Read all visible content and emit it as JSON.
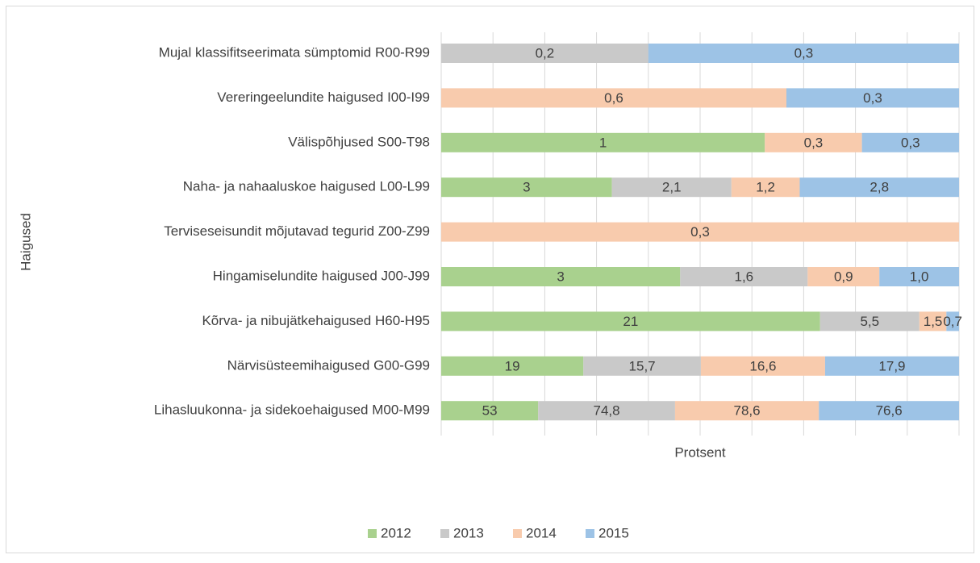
{
  "chart_data": {
    "type": "bar_stacked_100_horizontal",
    "x_label": "Protsent",
    "y_label": "Haigused",
    "categories": [
      "Mujal klassifitseerimata sümptomid R00-R99",
      "Vereringeelundite haigused I00-I99",
      "Välispõhjused S00-T98",
      "Naha- ja nahaaluskoe haigused L00-L99",
      "Terviseseisundit mõjutavad tegurid Z00-Z99",
      "Hingamiselundite haigused J00-J99",
      "Kõrva- ja nibujätkehaigused H60-H95",
      "Närvisüsteemihaigused G00-G99",
      "Lihasluukonna- ja sidekoehaigused M00-M99"
    ],
    "series": [
      {
        "name": "2012",
        "color": "#a9d18e",
        "values": [
          null,
          null,
          1,
          3,
          null,
          3,
          21,
          19,
          53
        ],
        "value_labels": [
          null,
          null,
          "1",
          "3",
          null,
          "3",
          "21",
          "19",
          "53"
        ]
      },
      {
        "name": "2013",
        "color": "#c9c9c9",
        "values": [
          0.2,
          null,
          null,
          2.1,
          null,
          1.6,
          5.5,
          15.7,
          74.8
        ],
        "value_labels": [
          "0,2",
          null,
          null,
          "2,1",
          null,
          "1,6",
          "5,5",
          "15,7",
          "74,8"
        ]
      },
      {
        "name": "2014",
        "color": "#f8cbad",
        "values": [
          null,
          0.6,
          0.3,
          1.2,
          0.3,
          0.9,
          1.5,
          16.6,
          78.6
        ],
        "value_labels": [
          null,
          "0,6",
          "0,3",
          "1,2",
          "0,3",
          "0,9",
          "1,5",
          "16,6",
          "78,6"
        ]
      },
      {
        "name": "2015",
        "color": "#9dc3e6",
        "values": [
          0.3,
          0.3,
          0.3,
          2.8,
          null,
          1.0,
          0.7,
          17.9,
          76.6
        ],
        "value_labels": [
          "0,3",
          "0,3",
          "0,3",
          "2,8",
          null,
          "1,0",
          "0,7",
          "17,9",
          "76,6"
        ]
      }
    ],
    "xlim": [
      0,
      100
    ],
    "xticks": [
      0,
      10,
      20,
      30,
      40,
      50,
      60,
      70,
      80,
      90,
      100
    ],
    "grid": true,
    "legend": "bottom"
  }
}
